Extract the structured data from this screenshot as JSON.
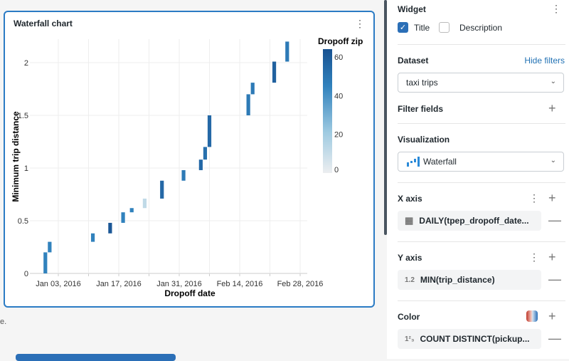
{
  "widget_card": {
    "title": "Waterfall chart"
  },
  "footer_note": "e.",
  "chart_data": {
    "type": "waterfall",
    "xlabel": "Dropoff date",
    "ylabel": "Minimum trip distance",
    "x_ticks": [
      "Jan 03, 2016",
      "Jan 17, 2016",
      "Jan 31, 2016",
      "Feb 14, 2016",
      "Feb 28, 2016"
    ],
    "y_ticks": [
      "0",
      "0.5",
      "1",
      "1.5",
      "2"
    ],
    "ylim": [
      0,
      2.2
    ],
    "grid": true,
    "legend": {
      "title": "Dropoff zip",
      "ticks": [
        "0",
        "20",
        "40",
        "60"
      ],
      "range": [
        0,
        64
      ],
      "placement": "right"
    },
    "bars": [
      {
        "x": "2015-12-31",
        "start": 0,
        "end": 0.2,
        "color_value": 45
      },
      {
        "x": "2016-01-01",
        "start": 0.2,
        "end": 0.3,
        "color_value": 45
      },
      {
        "x": "2016-01-11",
        "start": 0.3,
        "end": 0.38,
        "color_value": 45
      },
      {
        "x": "2016-01-15",
        "start": 0.38,
        "end": 0.48,
        "color_value": 62
      },
      {
        "x": "2016-01-18",
        "start": 0.48,
        "end": 0.58,
        "color_value": 45
      },
      {
        "x": "2016-01-20",
        "start": 0.58,
        "end": 0.62,
        "color_value": 45
      },
      {
        "x": "2016-01-23",
        "start": 0.62,
        "end": 0.71,
        "color_value": 12
      },
      {
        "x": "2016-01-27",
        "start": 0.71,
        "end": 0.88,
        "color_value": 55
      },
      {
        "x": "2016-02-01",
        "start": 0.88,
        "end": 0.98,
        "color_value": 48
      },
      {
        "x": "2016-02-05",
        "start": 0.98,
        "end": 1.08,
        "color_value": 55
      },
      {
        "x": "2016-02-06",
        "start": 1.08,
        "end": 1.2,
        "color_value": 52
      },
      {
        "x": "2016-02-07",
        "start": 1.2,
        "end": 1.5,
        "color_value": 55
      },
      {
        "x": "2016-02-16",
        "start": 1.5,
        "end": 1.7,
        "color_value": 48
      },
      {
        "x": "2016-02-17",
        "start": 1.7,
        "end": 1.81,
        "color_value": 48
      },
      {
        "x": "2016-02-22",
        "start": 1.81,
        "end": 2.01,
        "color_value": 58
      },
      {
        "x": "2016-02-25",
        "start": 2.01,
        "end": 2.2,
        "color_value": 48
      }
    ]
  },
  "panel": {
    "widget": {
      "heading": "Widget",
      "title_label": "Title",
      "title_checked": true,
      "description_label": "Description",
      "description_checked": false
    },
    "dataset": {
      "heading": "Dataset",
      "hide_filters": "Hide filters",
      "value": "taxi trips"
    },
    "filter_fields": {
      "heading": "Filter fields"
    },
    "visualization": {
      "heading": "Visualization",
      "value": "Waterfall",
      "icon": "waterfall-chart-icon"
    },
    "x_axis": {
      "heading": "X axis",
      "field": "DAILY(tpep_dropoff_date...",
      "icon": "calendar-icon"
    },
    "y_axis": {
      "heading": "Y axis",
      "field": "MIN(trip_distance)",
      "icon_text": "1.2"
    },
    "color": {
      "heading": "Color",
      "field": "COUNT DISTINCT(pickup...",
      "icon_text": "1²₃"
    }
  },
  "colors": {
    "accent": "#2b7bc4",
    "link": "#2272b4",
    "bar_dark": "#1a5796",
    "bar_light": "#d7e6f2"
  }
}
